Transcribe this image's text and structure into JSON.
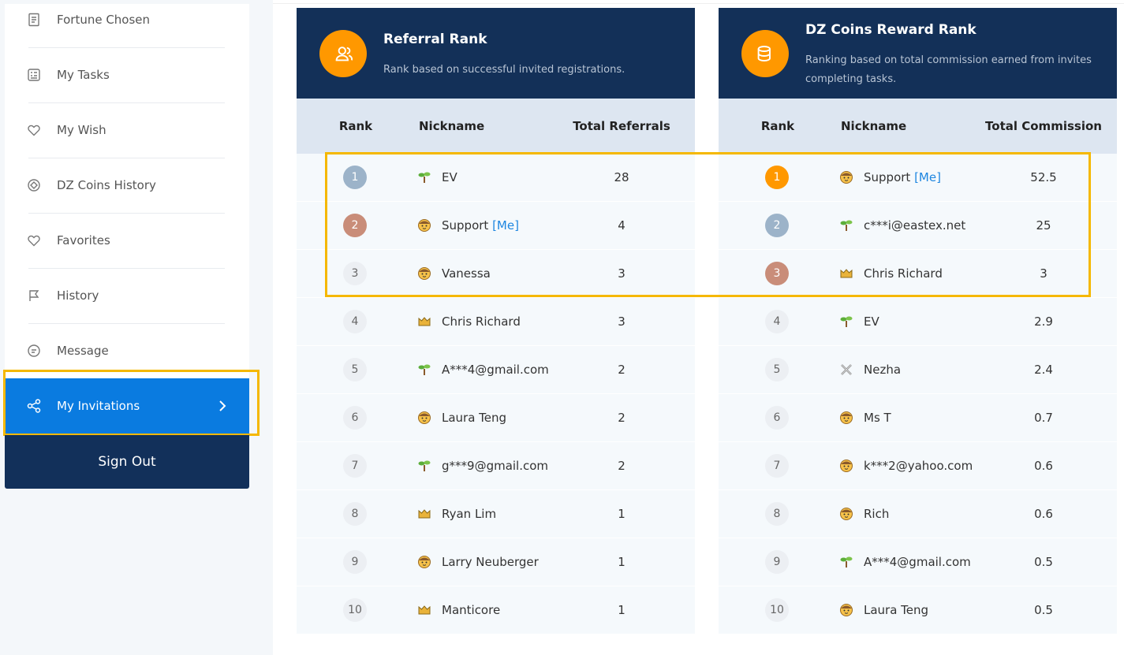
{
  "sidebar": {
    "items": [
      "Fortune Chosen",
      "My Tasks",
      "My Wish",
      "DZ Coins History",
      "Favorites",
      "History",
      "Message"
    ],
    "active_item": "My Invitations",
    "sign_out": "Sign Out"
  },
  "referral_rank": {
    "title": "Referral Rank",
    "subtitle": "Rank based on successful invited registrations.",
    "columns": [
      "Rank",
      "Nickname",
      "Total Referrals"
    ],
    "rows": [
      {
        "rank": 1,
        "badge": "sprout",
        "nickname": "EV",
        "total": 28
      },
      {
        "rank": 2,
        "badge": "face",
        "nickname": "Support",
        "tag": "[Me]",
        "total": 4
      },
      {
        "rank": 3,
        "badge": "face",
        "nickname": "Vanessa",
        "total": 3
      },
      {
        "rank": 4,
        "badge": "crown",
        "nickname": "Chris Richard",
        "total": 3
      },
      {
        "rank": 5,
        "badge": "sprout",
        "nickname": "A***4@gmail.com",
        "total": 2
      },
      {
        "rank": 6,
        "badge": "face",
        "nickname": "Laura Teng",
        "total": 2
      },
      {
        "rank": 7,
        "badge": "sprout",
        "nickname": "g***9@gmail.com",
        "total": 2
      },
      {
        "rank": 8,
        "badge": "crown",
        "nickname": "Ryan Lim",
        "total": 1
      },
      {
        "rank": 9,
        "badge": "face",
        "nickname": "Larry Neuberger",
        "total": 1
      },
      {
        "rank": 10,
        "badge": "crown",
        "nickname": "Manticore",
        "total": 1
      }
    ]
  },
  "coins_rank": {
    "title": "DZ Coins Reward Rank",
    "subtitle": "Ranking based on total commission earned from invites completing tasks.",
    "columns": [
      "Rank",
      "Nickname",
      "Total Commission"
    ],
    "rows": [
      {
        "rank": 1,
        "badge": "face",
        "nickname": "Support",
        "tag": "[Me]",
        "total": 52.5
      },
      {
        "rank": 2,
        "badge": "sprout",
        "nickname": "c***i@eastex.net",
        "total": 25
      },
      {
        "rank": 3,
        "badge": "crown",
        "nickname": "Chris Richard",
        "total": 3
      },
      {
        "rank": 4,
        "badge": "sprout",
        "nickname": "EV",
        "total": 2.9
      },
      {
        "rank": 5,
        "badge": "swords",
        "nickname": "Nezha",
        "total": 2.4
      },
      {
        "rank": 6,
        "badge": "face",
        "nickname": "Ms T",
        "total": 0.7
      },
      {
        "rank": 7,
        "badge": "face",
        "nickname": "k***2@yahoo.com",
        "total": 0.6
      },
      {
        "rank": 8,
        "badge": "face",
        "nickname": "Rich",
        "total": 0.6
      },
      {
        "rank": 9,
        "badge": "sprout",
        "nickname": "A***4@gmail.com",
        "total": 0.5
      },
      {
        "rank": 10,
        "badge": "face",
        "nickname": "Laura Teng",
        "total": 0.5
      }
    ]
  }
}
